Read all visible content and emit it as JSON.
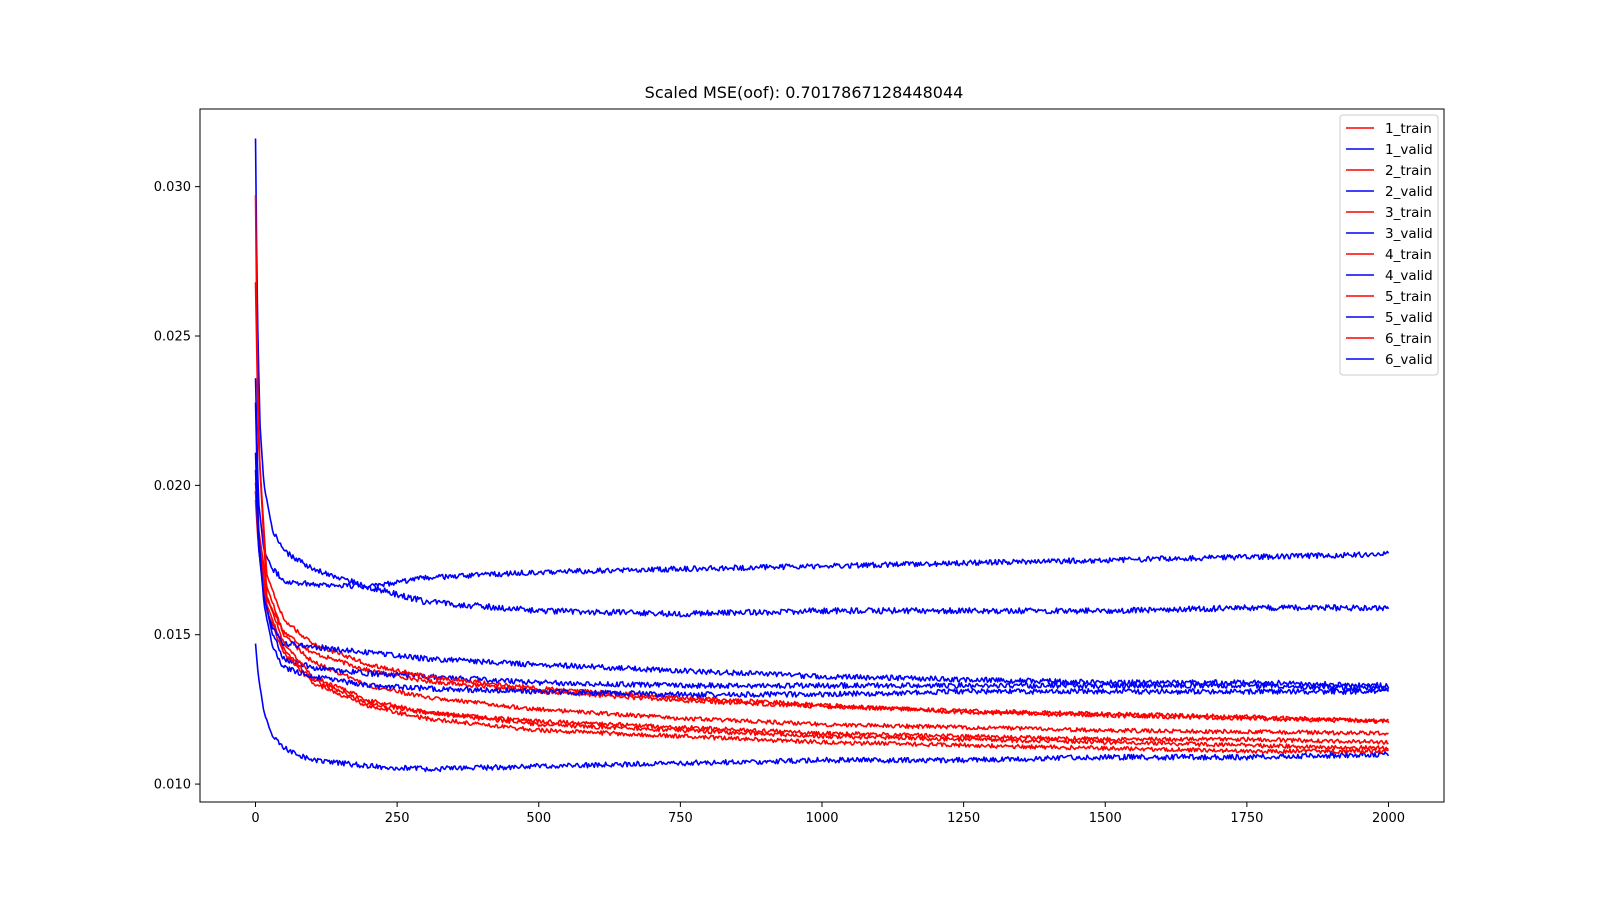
{
  "chart_data": {
    "type": "line",
    "title": "Scaled MSE(oof): 0.7017867128448044",
    "xlabel": "",
    "ylabel": "",
    "xlim": [
      -98,
      2098
    ],
    "ylim": [
      0.0094,
      0.0326
    ],
    "x_ticks": [
      0,
      250,
      500,
      750,
      1000,
      1250,
      1500,
      1750,
      2000
    ],
    "y_ticks": [
      0.01,
      0.015,
      0.02,
      0.025,
      0.03
    ],
    "y_tick_labels": [
      "0.010",
      "0.015",
      "0.020",
      "0.025",
      "0.030"
    ],
    "grid": false,
    "legend_position": "top-right",
    "colors": {
      "train": "#ff0000",
      "valid": "#0000ff"
    },
    "series": [
      {
        "name": "1_train",
        "color": "#ff0000",
        "noise": 7e-05,
        "points": [
          [
            0,
            0.0198
          ],
          [
            5,
            0.0183
          ],
          [
            20,
            0.0162
          ],
          [
            50,
            0.0151
          ],
          [
            100,
            0.0144
          ],
          [
            200,
            0.0138
          ],
          [
            300,
            0.01345
          ],
          [
            500,
            0.0131
          ],
          [
            750,
            0.0128
          ],
          [
            1000,
            0.0126
          ],
          [
            1250,
            0.01245
          ],
          [
            1500,
            0.01235
          ],
          [
            1750,
            0.01225
          ],
          [
            2000,
            0.0121
          ]
        ]
      },
      {
        "name": "1_valid",
        "color": "#0000ff",
        "noise": 0.0001,
        "points": [
          [
            0,
            0.0236
          ],
          [
            5,
            0.0195
          ],
          [
            15,
            0.0178
          ],
          [
            30,
            0.0172
          ],
          [
            50,
            0.0168
          ],
          [
            100,
            0.0167
          ],
          [
            200,
            0.0166
          ],
          [
            300,
            0.0161
          ],
          [
            500,
            0.0158
          ],
          [
            750,
            0.0157
          ],
          [
            1000,
            0.0158
          ],
          [
            1250,
            0.0158
          ],
          [
            1500,
            0.0158
          ],
          [
            1750,
            0.0159
          ],
          [
            2000,
            0.0159
          ]
        ]
      },
      {
        "name": "2_train",
        "color": "#ff0000",
        "noise": 7e-05,
        "points": [
          [
            0,
            0.0201
          ],
          [
            5,
            0.0186
          ],
          [
            20,
            0.0166
          ],
          [
            50,
            0.015
          ],
          [
            100,
            0.0141
          ],
          [
            200,
            0.0133
          ],
          [
            300,
            0.0129
          ],
          [
            500,
            0.0125
          ],
          [
            750,
            0.0122
          ],
          [
            1000,
            0.012
          ],
          [
            1250,
            0.0119
          ],
          [
            1500,
            0.0118
          ],
          [
            1750,
            0.01175
          ],
          [
            2000,
            0.0117
          ]
        ]
      },
      {
        "name": "2_valid",
        "color": "#0000ff",
        "noise": 9e-05,
        "points": [
          [
            0,
            0.0211
          ],
          [
            5,
            0.018
          ],
          [
            15,
            0.0163
          ],
          [
            30,
            0.015
          ],
          [
            50,
            0.0142
          ],
          [
            100,
            0.0139
          ],
          [
            200,
            0.0137
          ],
          [
            300,
            0.0136
          ],
          [
            500,
            0.0134
          ],
          [
            750,
            0.0133
          ],
          [
            1000,
            0.0133
          ],
          [
            1250,
            0.0133
          ],
          [
            1500,
            0.0133
          ],
          [
            1750,
            0.0133
          ],
          [
            2000,
            0.0132
          ]
        ]
      },
      {
        "name": "3_train",
        "color": "#ff0000",
        "noise": 7e-05,
        "points": [
          [
            0,
            0.0268
          ],
          [
            5,
            0.0215
          ],
          [
            20,
            0.017
          ],
          [
            50,
            0.0155
          ],
          [
            100,
            0.0147
          ],
          [
            200,
            0.014
          ],
          [
            300,
            0.0136
          ],
          [
            500,
            0.0132
          ],
          [
            750,
            0.0129
          ],
          [
            1000,
            0.01265
          ],
          [
            1250,
            0.0124
          ],
          [
            1500,
            0.0123
          ],
          [
            1750,
            0.0122
          ],
          [
            2000,
            0.0121
          ]
        ]
      },
      {
        "name": "3_valid",
        "color": "#0000ff",
        "noise": 9e-05,
        "points": [
          [
            0,
            0.0147
          ],
          [
            5,
            0.0136
          ],
          [
            15,
            0.0124
          ],
          [
            30,
            0.0116
          ],
          [
            50,
            0.0112
          ],
          [
            100,
            0.0108
          ],
          [
            200,
            0.0106
          ],
          [
            300,
            0.0105
          ],
          [
            500,
            0.0106
          ],
          [
            750,
            0.0107
          ],
          [
            1000,
            0.0108
          ],
          [
            1250,
            0.0108
          ],
          [
            1500,
            0.0109
          ],
          [
            1750,
            0.0109
          ],
          [
            2000,
            0.011
          ]
        ]
      },
      {
        "name": "4_train",
        "color": "#ff0000",
        "noise": 7e-05,
        "points": [
          [
            0,
            0.0198
          ],
          [
            5,
            0.0182
          ],
          [
            20,
            0.016
          ],
          [
            50,
            0.0145
          ],
          [
            100,
            0.0135
          ],
          [
            200,
            0.0127
          ],
          [
            300,
            0.0124
          ],
          [
            500,
            0.012
          ],
          [
            750,
            0.0118
          ],
          [
            1000,
            0.0116
          ],
          [
            1250,
            0.0115
          ],
          [
            1500,
            0.0114
          ],
          [
            1750,
            0.0113
          ],
          [
            2000,
            0.0112
          ]
        ]
      },
      {
        "name": "4_valid",
        "color": "#0000ff",
        "noise": 9e-05,
        "points": [
          [
            0,
            0.0316
          ],
          [
            3,
            0.026
          ],
          [
            8,
            0.022
          ],
          [
            15,
            0.02
          ],
          [
            30,
            0.0185
          ],
          [
            50,
            0.0178
          ],
          [
            100,
            0.0172
          ],
          [
            200,
            0.0166
          ],
          [
            300,
            0.0169
          ],
          [
            500,
            0.0171
          ],
          [
            750,
            0.0172
          ],
          [
            1000,
            0.0173
          ],
          [
            1250,
            0.0174
          ],
          [
            1500,
            0.0175
          ],
          [
            1750,
            0.0176
          ],
          [
            2000,
            0.0177
          ]
        ]
      },
      {
        "name": "5_train",
        "color": "#ff0000",
        "noise": 7e-05,
        "points": [
          [
            0,
            0.0195
          ],
          [
            5,
            0.018
          ],
          [
            20,
            0.0158
          ],
          [
            50,
            0.0144
          ],
          [
            100,
            0.0134
          ],
          [
            200,
            0.0126
          ],
          [
            300,
            0.0122
          ],
          [
            500,
            0.0118
          ],
          [
            750,
            0.0116
          ],
          [
            1000,
            0.0114
          ],
          [
            1250,
            0.0113
          ],
          [
            1500,
            0.0112
          ],
          [
            1750,
            0.0111
          ],
          [
            2000,
            0.0111
          ]
        ]
      },
      {
        "name": "5_valid",
        "color": "#0000ff",
        "noise": 9e-05,
        "points": [
          [
            0,
            0.0205
          ],
          [
            5,
            0.018
          ],
          [
            15,
            0.0162
          ],
          [
            30,
            0.0152
          ],
          [
            50,
            0.0147
          ],
          [
            100,
            0.0146
          ],
          [
            200,
            0.0144
          ],
          [
            300,
            0.0142
          ],
          [
            500,
            0.014
          ],
          [
            750,
            0.0138
          ],
          [
            1000,
            0.0136
          ],
          [
            1250,
            0.0135
          ],
          [
            1500,
            0.0134
          ],
          [
            1750,
            0.0134
          ],
          [
            2000,
            0.0133
          ]
        ]
      },
      {
        "name": "6_train",
        "color": "#ff0000",
        "noise": 7e-05,
        "points": [
          [
            0,
            0.0297
          ],
          [
            3,
            0.024
          ],
          [
            8,
            0.0205
          ],
          [
            20,
            0.0163
          ],
          [
            50,
            0.0147
          ],
          [
            100,
            0.0136
          ],
          [
            200,
            0.0128
          ],
          [
            300,
            0.0124
          ],
          [
            500,
            0.0121
          ],
          [
            750,
            0.0119
          ],
          [
            1000,
            0.0117
          ],
          [
            1250,
            0.0116
          ],
          [
            1500,
            0.0115
          ],
          [
            1750,
            0.0115
          ],
          [
            2000,
            0.0114
          ]
        ]
      },
      {
        "name": "6_valid",
        "color": "#0000ff",
        "noise": 9e-05,
        "points": [
          [
            0,
            0.0228
          ],
          [
            5,
            0.0185
          ],
          [
            15,
            0.016
          ],
          [
            30,
            0.0146
          ],
          [
            50,
            0.0139
          ],
          [
            100,
            0.0136
          ],
          [
            200,
            0.0133
          ],
          [
            300,
            0.0132
          ],
          [
            500,
            0.0131
          ],
          [
            750,
            0.013
          ],
          [
            1000,
            0.013
          ],
          [
            1250,
            0.0131
          ],
          [
            1500,
            0.0131
          ],
          [
            1750,
            0.0131
          ],
          [
            2000,
            0.0131
          ]
        ]
      }
    ]
  }
}
